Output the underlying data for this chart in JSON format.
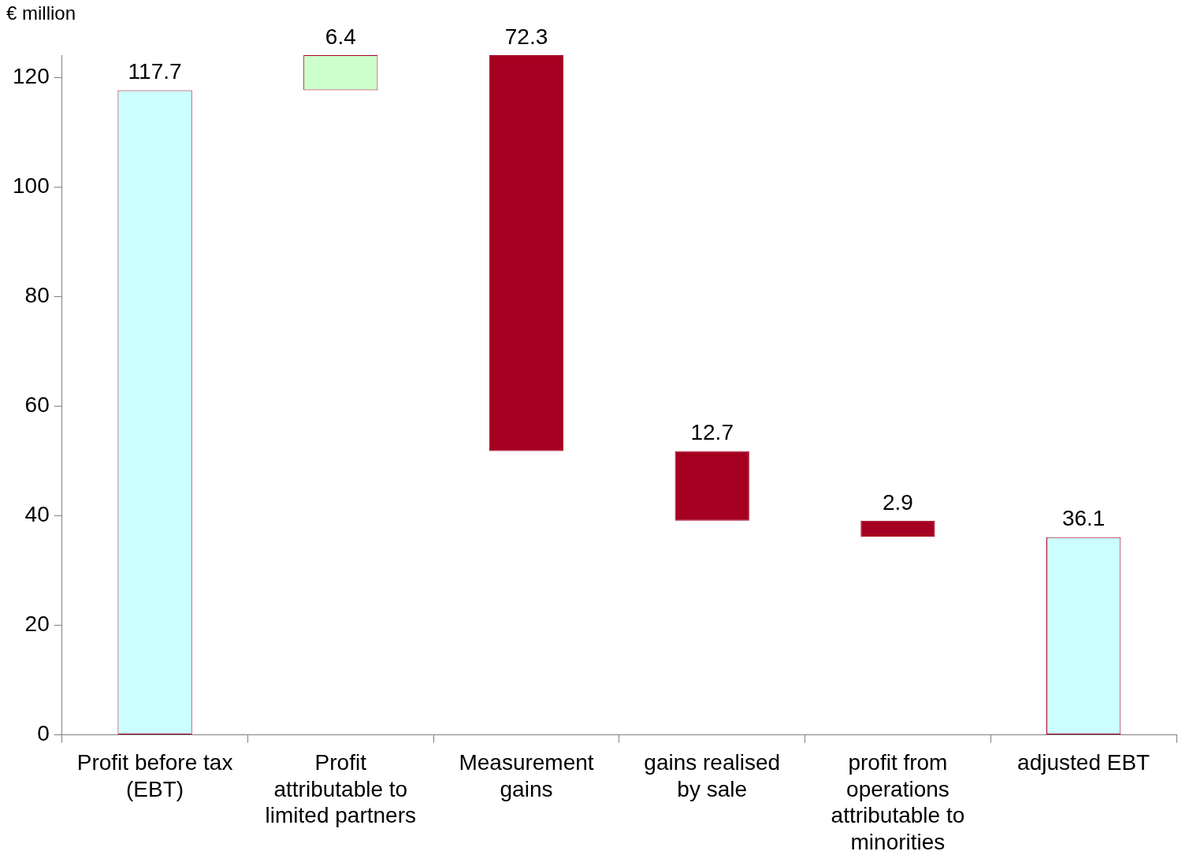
{
  "chart_data": {
    "type": "bar",
    "ylabel": "€ million",
    "categories": [
      "Profit before tax (EBT)",
      "Profit attributable to limited partners",
      "Measurement gains",
      "gains realised by sale",
      "profit from operations attributable to minorities",
      "adjusted EBT"
    ],
    "values": [
      117.7,
      6.4,
      72.3,
      12.7,
      2.9,
      36.1
    ],
    "base": [
      0,
      117.7,
      51.8,
      39.1,
      36.2,
      0
    ],
    "colors": [
      "#ccffff",
      "#ccffcc",
      "#a50021",
      "#a50021",
      "#a50021",
      "#ccffff"
    ],
    "ylim": [
      0,
      124.1
    ],
    "yticks": [
      0,
      20,
      40,
      60,
      80,
      100,
      120
    ],
    "data_labels": true,
    "grid": false,
    "legend": false
  }
}
